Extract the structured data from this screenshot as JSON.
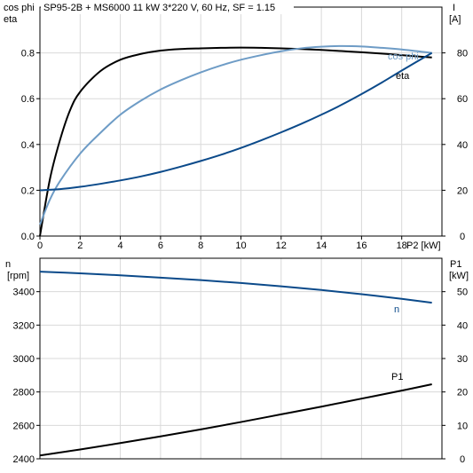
{
  "chart_title": "SP95-2B + MS6000   11 kW   3*220 V, 60 Hz, SF = 1.15",
  "colors": {
    "black": "#000000",
    "dark_blue": "#0b4a8a",
    "light_blue": "#6e9cc6",
    "grid": "#d9d9d9"
  },
  "chart_data": [
    {
      "type": "line",
      "left_axis_label": [
        "cos phi",
        "eta"
      ],
      "right_axis_label": [
        "I",
        "[A]"
      ],
      "x_label": "P2 [kW]",
      "xlim": [
        0,
        20
      ],
      "ylim_left": [
        0.0,
        1.0
      ],
      "ylim_right": [
        0,
        100
      ],
      "x_ticks": [
        "0",
        "2",
        "4",
        "6",
        "8",
        "10",
        "12",
        "14",
        "16",
        "18"
      ],
      "y_ticks_left": [
        "0.0",
        "0.2",
        "0.4",
        "0.6",
        "0.8"
      ],
      "y_ticks_right": [
        "0",
        "20",
        "40",
        "60",
        "80"
      ],
      "grid": true,
      "series": [
        {
          "name": "eta",
          "axis": "left",
          "color": "#000000",
          "points": [
            [
              0,
              0
            ],
            [
              0.5,
              0.25
            ],
            [
              1,
              0.42
            ],
            [
              1.5,
              0.55
            ],
            [
              2,
              0.63
            ],
            [
              3,
              0.72
            ],
            [
              4,
              0.77
            ],
            [
              5,
              0.795
            ],
            [
              6,
              0.81
            ],
            [
              7,
              0.817
            ],
            [
              8,
              0.82
            ],
            [
              9,
              0.822
            ],
            [
              10,
              0.823
            ],
            [
              11,
              0.822
            ],
            [
              12,
              0.82
            ],
            [
              13,
              0.817
            ],
            [
              14,
              0.813
            ],
            [
              15,
              0.808
            ],
            [
              16,
              0.803
            ],
            [
              17,
              0.797
            ],
            [
              18,
              0.79
            ],
            [
              19.5,
              0.78
            ]
          ]
        },
        {
          "name": "cos phi",
          "axis": "left",
          "color": "#6e9cc6",
          "points": [
            [
              0,
              0.05
            ],
            [
              0.5,
              0.16
            ],
            [
              1,
              0.24
            ],
            [
              2,
              0.36
            ],
            [
              3,
              0.45
            ],
            [
              4,
              0.53
            ],
            [
              5,
              0.59
            ],
            [
              6,
              0.64
            ],
            [
              7,
              0.68
            ],
            [
              8,
              0.715
            ],
            [
              9,
              0.745
            ],
            [
              10,
              0.77
            ],
            [
              11,
              0.79
            ],
            [
              12,
              0.807
            ],
            [
              13,
              0.82
            ],
            [
              14,
              0.827
            ],
            [
              15,
              0.83
            ],
            [
              16,
              0.828
            ],
            [
              17,
              0.822
            ],
            [
              18,
              0.815
            ],
            [
              19.5,
              0.8
            ]
          ]
        },
        {
          "name": "I",
          "axis": "right",
          "color": "#0b4a8a",
          "points": [
            [
              0,
              20
            ],
            [
              1,
              20.5
            ],
            [
              2,
              21.5
            ],
            [
              3,
              22.8
            ],
            [
              4,
              24.3
            ],
            [
              5,
              26
            ],
            [
              6,
              28
            ],
            [
              7,
              30.3
            ],
            [
              8,
              32.8
            ],
            [
              9,
              35.5
            ],
            [
              10,
              38.5
            ],
            [
              11,
              41.8
            ],
            [
              12,
              45.3
            ],
            [
              13,
              49
            ],
            [
              14,
              53
            ],
            [
              15,
              57.3
            ],
            [
              16,
              62
            ],
            [
              17,
              67
            ],
            [
              18,
              72.3
            ],
            [
              19.5,
              80
            ]
          ]
        }
      ]
    },
    {
      "type": "line",
      "left_axis_label": [
        "n",
        "[rpm]"
      ],
      "right_axis_label": [
        "P1",
        "[kW]"
      ],
      "x_label": "",
      "xlim": [
        0,
        20
      ],
      "ylim_left": [
        2400,
        3600
      ],
      "ylim_right": [
        0,
        60
      ],
      "y_ticks_left": [
        "2400",
        "2600",
        "2800",
        "3000",
        "3200",
        "3400"
      ],
      "y_ticks_right": [
        "0",
        "10",
        "20",
        "30",
        "40",
        "50"
      ],
      "grid": true,
      "series": [
        {
          "name": "n",
          "axis": "left",
          "color": "#0b4a8a",
          "points": [
            [
              0,
              3520
            ],
            [
              2,
              3510
            ],
            [
              4,
              3498
            ],
            [
              6,
              3484
            ],
            [
              8,
              3469
            ],
            [
              10,
              3452
            ],
            [
              12,
              3432
            ],
            [
              14,
              3410
            ],
            [
              16,
              3385
            ],
            [
              18,
              3357
            ],
            [
              19.5,
              3334
            ]
          ]
        },
        {
          "name": "P1",
          "axis": "right",
          "color": "#000000",
          "points": [
            [
              0,
              1
            ],
            [
              2,
              2.8
            ],
            [
              4,
              4.7
            ],
            [
              6,
              6.7
            ],
            [
              8,
              8.8
            ],
            [
              10,
              11
            ],
            [
              12,
              13.3
            ],
            [
              14,
              15.6
            ],
            [
              16,
              18
            ],
            [
              18,
              20.4
            ],
            [
              19.5,
              22.3
            ]
          ]
        }
      ]
    }
  ]
}
